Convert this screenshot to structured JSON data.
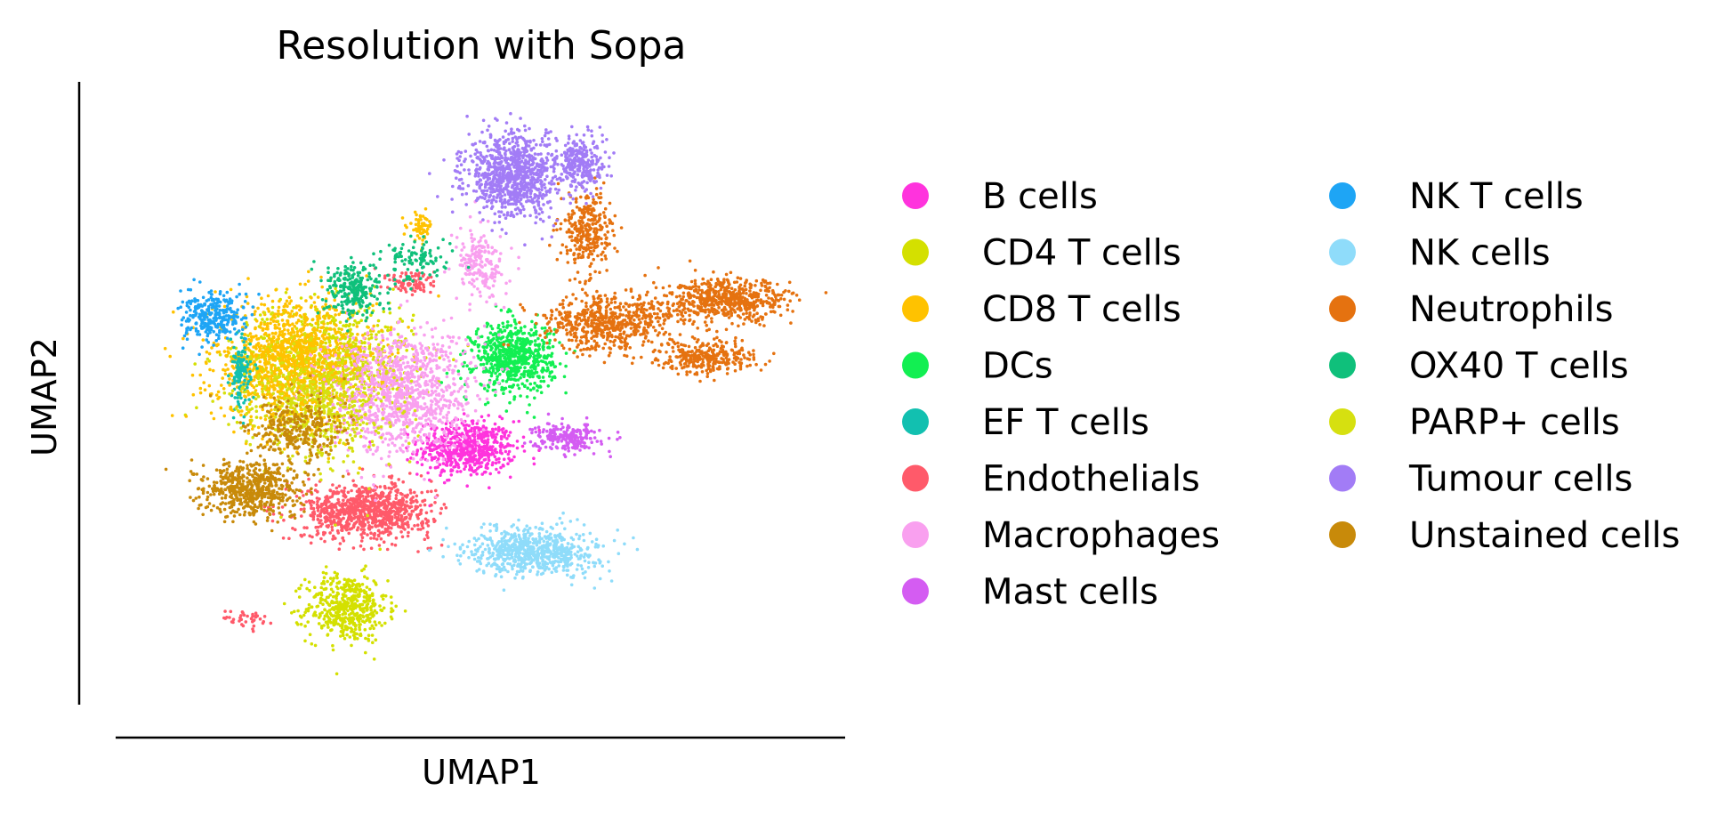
{
  "chart_data": {
    "type": "scatter",
    "title": "Resolution with Sopa",
    "xlabel": "UMAP1",
    "ylabel": "UMAP2",
    "ticks": "none",
    "grid": false,
    "legend_placement": "right, two columns",
    "xlim": [
      0,
      100
    ],
    "ylim": [
      0,
      100
    ],
    "series": [
      {
        "name": "B cells",
        "color": "#ff33dd",
        "clusters": [
          {
            "center": [
              48,
              40
            ],
            "spread": [
              6,
              4
            ],
            "n": 600
          }
        ]
      },
      {
        "name": "CD4 T cells",
        "color": "#d4e000",
        "clusters": [
          {
            "center": [
              30,
              12
            ],
            "spread": [
              5,
              5
            ],
            "n": 500
          },
          {
            "center": [
              27,
              56
            ],
            "spread": [
              11,
              8
            ],
            "n": 700
          }
        ]
      },
      {
        "name": "CD8 T cells",
        "color": "#ffc200",
        "clusters": [
          {
            "center": [
              22,
              55
            ],
            "spread": [
              10,
              9
            ],
            "n": 1300
          },
          {
            "center": [
              41,
              79
            ],
            "spread": [
              1.5,
              2
            ],
            "n": 60
          }
        ]
      },
      {
        "name": "DCs",
        "color": "#12ef52",
        "clusters": [
          {
            "center": [
              55,
              56
            ],
            "spread": [
              5,
              5
            ],
            "n": 700
          }
        ]
      },
      {
        "name": "EF T cells",
        "color": "#12c0b0",
        "clusters": [
          {
            "center": [
              14,
              53
            ],
            "spread": [
              1.3,
              5
            ],
            "n": 120
          }
        ]
      },
      {
        "name": "Endothelials",
        "color": "#ff5a6a",
        "clusters": [
          {
            "center": [
              33,
              29
            ],
            "spread": [
              8,
              4
            ],
            "n": 900
          },
          {
            "center": [
              40,
              69
            ],
            "spread": [
              3,
              2
            ],
            "n": 90
          },
          {
            "center": [
              15,
              10
            ],
            "spread": [
              3,
              1.5
            ],
            "n": 40
          }
        ]
      },
      {
        "name": "Macrophages",
        "color": "#f9a0ef",
        "clusters": [
          {
            "center": [
              38,
              50
            ],
            "spread": [
              9,
              9
            ],
            "n": 1100
          },
          {
            "center": [
              50,
              72
            ],
            "spread": [
              3,
              5
            ],
            "n": 200
          }
        ]
      },
      {
        "name": "Mast cells",
        "color": "#d45cf2",
        "clusters": [
          {
            "center": [
              63,
              42
            ],
            "spread": [
              4,
              2
            ],
            "n": 220
          }
        ]
      },
      {
        "name": "NK T cells",
        "color": "#1ea5f5",
        "clusters": [
          {
            "center": [
              10,
              63
            ],
            "spread": [
              4,
              3.5
            ],
            "n": 300
          }
        ]
      },
      {
        "name": "NK cells",
        "color": "#8fdcfa",
        "clusters": [
          {
            "center": [
              58,
              22
            ],
            "spread": [
              8,
              3.5
            ],
            "n": 700
          }
        ]
      },
      {
        "name": "Neutrophils",
        "color": "#e57210",
        "clusters": [
          {
            "center": [
              69,
              62
            ],
            "spread": [
              8,
              4
            ],
            "n": 600
          },
          {
            "center": [
              87,
              66
            ],
            "spread": [
              8,
              3
            ],
            "n": 600
          },
          {
            "center": [
              84,
              56
            ],
            "spread": [
              6,
              2.5
            ],
            "n": 300
          },
          {
            "center": [
              66,
              78
            ],
            "spread": [
              3,
              6
            ],
            "n": 300
          }
        ]
      },
      {
        "name": "OX40 T cells",
        "color": "#0fc07b",
        "clusters": [
          {
            "center": [
              31,
              68
            ],
            "spread": [
              3.5,
              4
            ],
            "n": 250
          },
          {
            "center": [
              41,
              73
            ],
            "spread": [
              4,
              3
            ],
            "n": 100
          }
        ]
      },
      {
        "name": "PARP+ cells",
        "color": "#d6e010",
        "clusters": [
          {
            "center": [
              26,
              48
            ],
            "spread": [
              9,
              9
            ],
            "n": 500
          }
        ]
      },
      {
        "name": "Tumour cells",
        "color": "#a27cf6",
        "clusters": [
          {
            "center": [
              55,
              88
            ],
            "spread": [
              6,
              6
            ],
            "n": 900
          },
          {
            "center": [
              65,
              90
            ],
            "spread": [
              3,
              4
            ],
            "n": 250
          }
        ]
      },
      {
        "name": "Unstained cells",
        "color": "#c88a0a",
        "clusters": [
          {
            "center": [
              16,
              33
            ],
            "spread": [
              6,
              4
            ],
            "n": 600
          },
          {
            "center": [
              22,
              43
            ],
            "spread": [
              6,
              5
            ],
            "n": 300
          }
        ]
      }
    ]
  }
}
